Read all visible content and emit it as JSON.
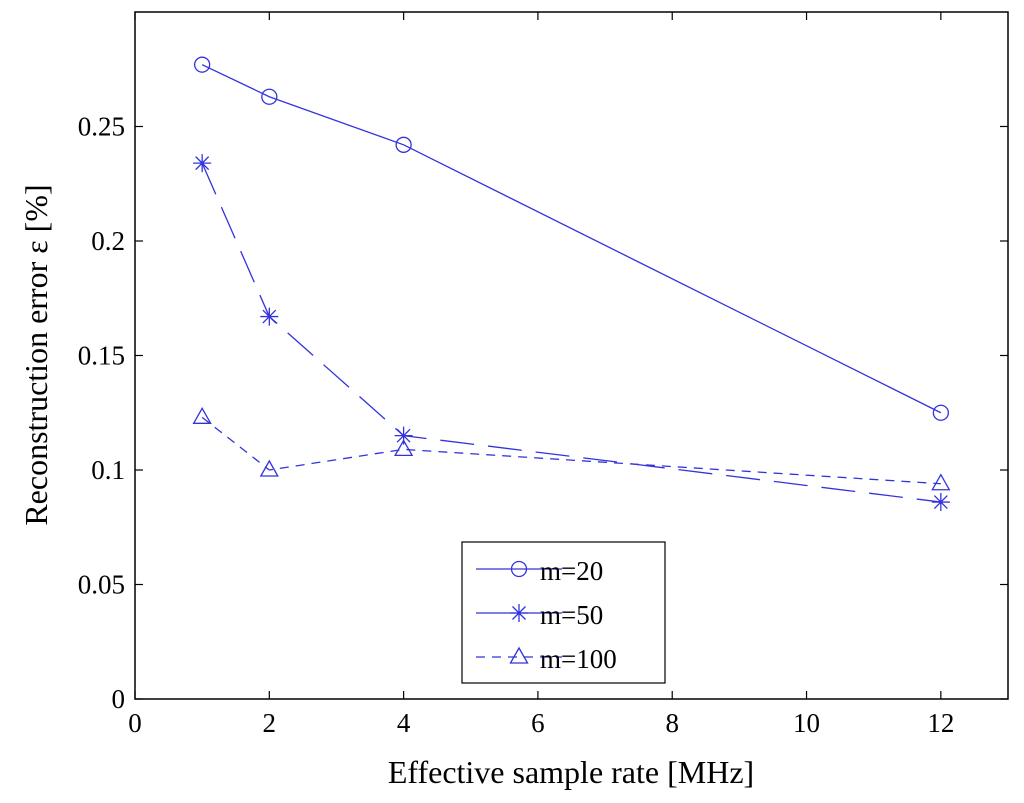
{
  "chart_data": {
    "type": "line",
    "xlabel": "Effective sample rate [MHz]",
    "ylabel": "Reconstruction error ε [%]",
    "xlim": [
      0,
      13
    ],
    "ylim": [
      0,
      0.3
    ],
    "xticks": [
      0,
      2,
      4,
      6,
      8,
      10,
      12
    ],
    "xtick_labels": [
      "0",
      "2",
      "4",
      "6",
      "8",
      "10",
      "12"
    ],
    "yticks": [
      0,
      0.05,
      0.1,
      0.15,
      0.2,
      0.25
    ],
    "ytick_labels": [
      "0",
      "0.05",
      "0.1",
      "0.15",
      "0.2",
      "0.25"
    ],
    "legend_position": "bottom-center",
    "color": "#3333dd",
    "series": [
      {
        "name": "m=20",
        "marker": "circle",
        "line_style": "solid",
        "x": [
          1,
          2,
          4,
          12
        ],
        "y": [
          0.277,
          0.263,
          0.242,
          0.125
        ]
      },
      {
        "name": "m=50",
        "marker": "asterisk",
        "line_style": "long-dash",
        "x": [
          1,
          2,
          4,
          12
        ],
        "y": [
          0.234,
          0.167,
          0.115,
          0.086
        ]
      },
      {
        "name": "m=100",
        "marker": "triangle",
        "line_style": "dash",
        "x": [
          1,
          2,
          4,
          12
        ],
        "y": [
          0.123,
          0.1,
          0.109,
          0.094
        ]
      }
    ]
  }
}
